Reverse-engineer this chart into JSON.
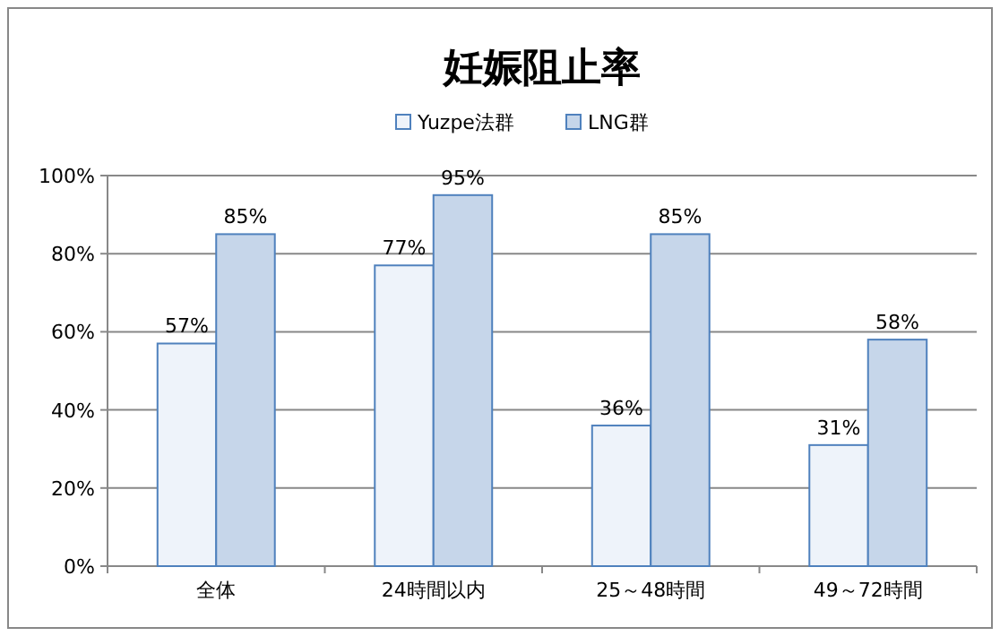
{
  "chart_data": {
    "type": "bar",
    "title": "妊娠阻止率",
    "categories": [
      "全体",
      "24時間以内",
      "25～48時間",
      "49～72時間"
    ],
    "series": [
      {
        "name": "Yuzpe法群",
        "color": "#eef3fa",
        "values": [
          57,
          77,
          36,
          31
        ],
        "value_labels": [
          "57%",
          "77%",
          "36%",
          "31%"
        ]
      },
      {
        "name": "LNG群",
        "color": "#c6d6ea",
        "values": [
          85,
          95,
          85,
          58
        ],
        "value_labels": [
          "85%",
          "95%",
          "85%",
          "58%"
        ]
      }
    ],
    "ylim": [
      0,
      100
    ],
    "yticks": [
      {
        "value": 0,
        "label": "0%"
      },
      {
        "value": 20,
        "label": "20%"
      },
      {
        "value": 40,
        "label": "40%"
      },
      {
        "value": 60,
        "label": "60%"
      },
      {
        "value": 80,
        "label": "80%"
      },
      {
        "value": 100,
        "label": "100%"
      }
    ],
    "grid": "y",
    "legend": "top"
  }
}
